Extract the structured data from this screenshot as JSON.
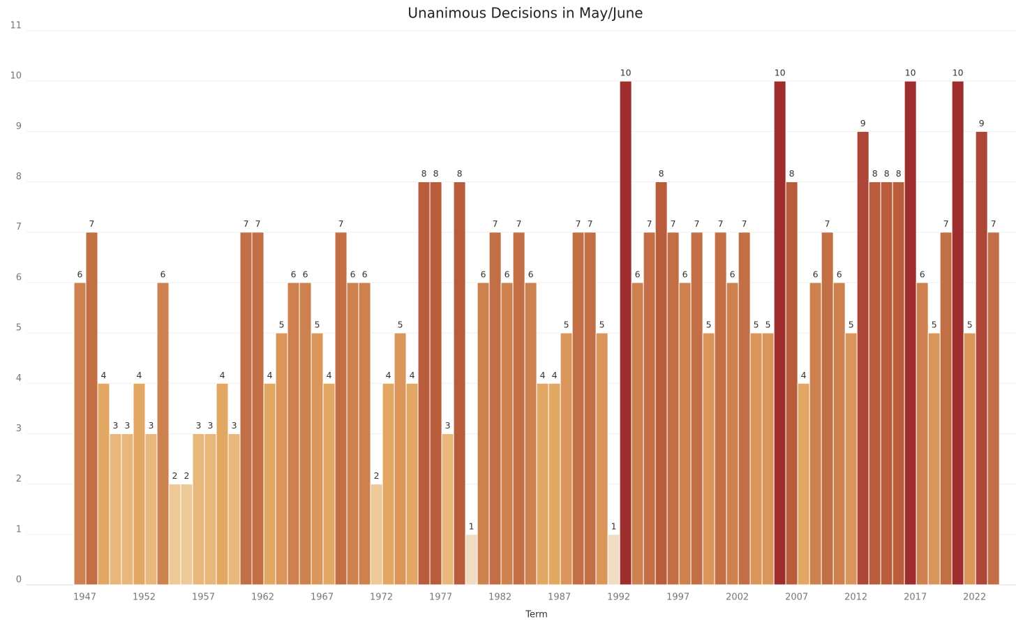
{
  "chart_data": {
    "type": "bar",
    "title": "Unanimous Decisions in May/June",
    "x_label": "Term",
    "x": [
      1947,
      1948,
      1949,
      1950,
      1951,
      1952,
      1953,
      1954,
      1955,
      1956,
      1957,
      1958,
      1959,
      1960,
      1961,
      1962,
      1963,
      1964,
      1965,
      1966,
      1967,
      1968,
      1969,
      1970,
      1971,
      1972,
      1973,
      1974,
      1975,
      1976,
      1977,
      1978,
      1979,
      1980,
      1981,
      1982,
      1983,
      1984,
      1985,
      1986,
      1987,
      1988,
      1989,
      1990,
      1991,
      1992,
      1993,
      1994,
      1995,
      1996,
      1997,
      1998,
      1999,
      2000,
      2001,
      2002,
      2003,
      2004,
      2005,
      2006,
      2007,
      2008,
      2009,
      2010,
      2011,
      2012,
      2013,
      2014,
      2015,
      2016,
      2017,
      2018,
      2019,
      2020,
      2021,
      2022,
      2023,
      2024
    ],
    "values": [
      6,
      7,
      4,
      3,
      3,
      4,
      3,
      6,
      2,
      2,
      3,
      3,
      4,
      3,
      7,
      7,
      4,
      5,
      6,
      6,
      5,
      4,
      7,
      6,
      6,
      2,
      4,
      5,
      4,
      8,
      8,
      3,
      8,
      1,
      6,
      7,
      6,
      7,
      6,
      4,
      4,
      5,
      7,
      7,
      5,
      1,
      10,
      6,
      7,
      8,
      7,
      6,
      7,
      5,
      7,
      6,
      7,
      5,
      5,
      10,
      8,
      4,
      6,
      7,
      6,
      5,
      9,
      8,
      8,
      8,
      10,
      6,
      5,
      7,
      10,
      5,
      9,
      7
    ],
    "xlim": [
      1942.5,
      2025.9
    ],
    "xticks": [
      1947,
      1952,
      1957,
      1962,
      1967,
      1972,
      1977,
      1982,
      1987,
      1992,
      1997,
      2002,
      2007,
      2012,
      2017,
      2022
    ],
    "ylim": [
      0,
      11
    ],
    "yticks": [
      0,
      1,
      2,
      3,
      4,
      5,
      6,
      7,
      8,
      9,
      10,
      11
    ],
    "grid": true,
    "color_scale": [
      "#f0dcc2",
      "#ecc997",
      "#e7b77c",
      "#e3a764",
      "#da955b",
      "#cd814f",
      "#c26f45",
      "#b95c3c",
      "#ad4636",
      "#9e2e2d"
    ]
  }
}
